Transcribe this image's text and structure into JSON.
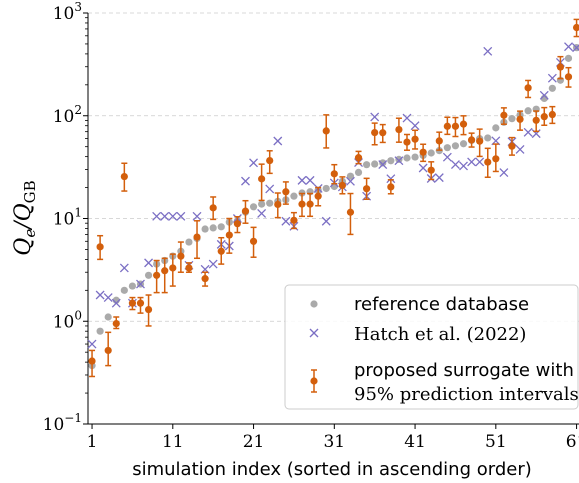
{
  "chart_data": {
    "type": "scatter",
    "xlabel": "simulation index (sorted in ascending order)",
    "ylabel": "Q_e/Q_GB",
    "ylabel_parts": {
      "main": "Q",
      "sub1": "e",
      "slash": "/Q",
      "sub2": "GB"
    },
    "xlim": [
      0.5,
      61.3
    ],
    "ylim": [
      0.1,
      1000
    ],
    "yscale": "log",
    "grid": "horizontal dashed",
    "legend_position": "bottom-right",
    "x_ticks": [
      1,
      11,
      21,
      31,
      41,
      51,
      61
    ],
    "x_tick_labels": [
      "1",
      "11",
      "21",
      "31",
      "41",
      "51",
      "61"
    ],
    "y_ticks": [
      0.1,
      1,
      10,
      100,
      1000
    ],
    "y_tick_labels": [
      {
        "base": "10",
        "exp": "−1"
      },
      {
        "base": "10",
        "exp": "0"
      },
      {
        "base": "10",
        "exp": "1"
      },
      {
        "base": "10",
        "exp": "2"
      },
      {
        "base": "10",
        "exp": "3"
      }
    ],
    "colors": {
      "reference": "#aaaaaa",
      "hatch": "#7b6fc4",
      "surrogate": "#d35f0c",
      "grid": "#cccccc"
    },
    "legend": [
      {
        "marker": "dot",
        "lines": [
          "reference database"
        ]
      },
      {
        "marker": "cross",
        "lines": [
          "Hatch et al. (2022)"
        ]
      },
      {
        "marker": "errorbar",
        "lines": [
          "proposed surrogate with",
          "95% prediction intervals"
        ]
      }
    ],
    "series": [
      {
        "name": "reference database",
        "marker": "dot",
        "x": [
          1,
          2,
          3,
          4,
          5,
          6,
          7,
          8,
          9,
          10,
          11,
          12,
          13,
          14,
          15,
          16,
          17,
          18,
          19,
          20,
          21,
          22,
          23,
          24,
          25,
          26,
          27,
          28,
          29,
          30,
          31,
          32,
          33,
          34,
          35,
          36,
          37,
          38,
          39,
          40,
          41,
          42,
          43,
          44,
          45,
          46,
          47,
          48,
          49,
          50,
          51,
          52,
          53,
          54,
          55,
          56,
          57,
          58,
          59,
          60,
          61
        ],
        "y": [
          0.37,
          0.8,
          1.1,
          1.6,
          2.0,
          2.2,
          2.3,
          2.8,
          3.6,
          3.9,
          4.3,
          4.8,
          5.9,
          6.4,
          7.9,
          8.1,
          8.3,
          9.2,
          9.5,
          11.5,
          13.0,
          13.8,
          14.1,
          14.7,
          15.2,
          16.5,
          17.7,
          18.2,
          18.8,
          19.6,
          20.5,
          23.0,
          25.8,
          28.1,
          33.4,
          33.9,
          34.8,
          36.5,
          37.6,
          38.8,
          39.6,
          41.1,
          43.4,
          45.8,
          48.9,
          51.0,
          53.4,
          57.5,
          59.9,
          60.8,
          76.2,
          86.4,
          93.7,
          101.9,
          111.8,
          115.8,
          147.5,
          185.0,
          221.5,
          362.0,
          460.0
        ]
      },
      {
        "name": "Hatch et al. (2022)",
        "marker": "cross",
        "x": [
          1,
          2,
          3,
          4,
          5,
          6,
          7,
          8,
          9,
          10,
          11,
          12,
          13,
          14,
          15,
          16,
          17,
          18,
          19,
          20,
          21,
          22,
          23,
          24,
          25,
          26,
          27,
          28,
          29,
          30,
          31,
          32,
          33,
          34,
          35,
          36,
          37,
          38,
          39,
          40,
          41,
          42,
          43,
          44,
          45,
          46,
          47,
          48,
          49,
          50,
          51,
          52,
          53,
          54,
          55,
          56,
          57,
          58,
          59,
          60,
          61
        ],
        "y": [
          0.6,
          1.8,
          1.7,
          1.5,
          3.3,
          1.5,
          2.3,
          3.7,
          10.5,
          10.5,
          10.5,
          10.5,
          3.5,
          10.5,
          3.2,
          3.6,
          5.6,
          5.4,
          10.0,
          23.1,
          34.8,
          11.2,
          19.4,
          56.8,
          9.4,
          8.4,
          23.5,
          23.5,
          19.6,
          9.4,
          22.2,
          20.3,
          23.0,
          35.0,
          16.5,
          97.4,
          33.5,
          24.4,
          36.5,
          95.0,
          80.0,
          31.0,
          24.5,
          25.0,
          39.5,
          33.5,
          32.5,
          35.5,
          35.5,
          424.0,
          57.0,
          28.0,
          56.0,
          47.0,
          69.0,
          67.0,
          158.0,
          232.0,
          330.0,
          470.0,
          460.0
        ]
      },
      {
        "name": "proposed surrogate with 95% prediction intervals",
        "marker": "errorbar",
        "x": [
          1,
          2,
          3,
          4,
          5,
          6,
          7,
          8,
          9,
          10,
          11,
          12,
          13,
          14,
          15,
          16,
          17,
          18,
          19,
          20,
          21,
          22,
          23,
          24,
          25,
          26,
          27,
          28,
          29,
          30,
          31,
          32,
          33,
          34,
          35,
          36,
          37,
          38,
          39,
          40,
          41,
          42,
          43,
          44,
          45,
          46,
          47,
          48,
          49,
          50,
          51,
          52,
          53,
          54,
          55,
          56,
          57,
          58,
          59,
          60,
          61
        ],
        "y": [
          0.41,
          5.3,
          0.52,
          0.95,
          25.6,
          1.5,
          1.5,
          1.3,
          2.8,
          3.1,
          3.3,
          4.3,
          3.3,
          6.6,
          2.6,
          12.7,
          4.8,
          6.9,
          8.9,
          11.8,
          6.0,
          24.3,
          36.6,
          13.7,
          18.2,
          9.6,
          13.8,
          13.8,
          16.5,
          71.2,
          27.2,
          21.0,
          11.5,
          39.1,
          19.5,
          68.6,
          68.3,
          20.3,
          73.4,
          55.4,
          59.1,
          44.2,
          29.5,
          56.9,
          79.0,
          79.0,
          82.9,
          58.2,
          56.5,
          35.4,
          38.1,
          101.1,
          50.5,
          92.4,
          186.9,
          90.3,
          98.0,
          102.8,
          297.9,
          239.2,
          722.0
        ],
        "y_low": [
          0.29,
          4.0,
          0.37,
          0.85,
          18.5,
          1.3,
          1.2,
          0.9,
          1.9,
          1.9,
          2.2,
          3.0,
          3.0,
          4.1,
          2.2,
          9.8,
          3.6,
          4.6,
          7.3,
          9.0,
          4.2,
          15.0,
          27.5,
          10.2,
          13.8,
          8.0,
          10.5,
          10.5,
          13.3,
          48.6,
          21.8,
          17.4,
          7.0,
          34.2,
          15.4,
          52.2,
          55.0,
          17.4,
          55.3,
          46.2,
          47.5,
          36.0,
          24.0,
          46.3,
          65.9,
          62.8,
          65.5,
          49.6,
          40.2,
          25.2,
          28.7,
          82.7,
          41.4,
          72.4,
          150.6,
          70.5,
          80.8,
          84.3,
          229.7,
          190.2,
          590.0
        ],
        "y_high": [
          0.52,
          6.8,
          0.78,
          1.1,
          34.5,
          1.7,
          1.7,
          1.8,
          3.9,
          4.1,
          4.5,
          5.9,
          3.7,
          9.5,
          3.0,
          16.2,
          6.5,
          10.0,
          10.4,
          14.9,
          8.2,
          33.8,
          45.6,
          17.7,
          22.7,
          11.4,
          17.5,
          17.5,
          20.0,
          102.0,
          33.4,
          25.4,
          17.5,
          45.0,
          24.6,
          84.8,
          82.0,
          23.8,
          94.6,
          65.7,
          72.2,
          52.8,
          35.6,
          69.2,
          96.7,
          96.0,
          99.8,
          67.7,
          74.1,
          48.2,
          53.0,
          119.3,
          61.3,
          110.9,
          220.5,
          111.1,
          120.0,
          122.6,
          375.9,
          293.6,
          866.0
        ]
      }
    ]
  }
}
